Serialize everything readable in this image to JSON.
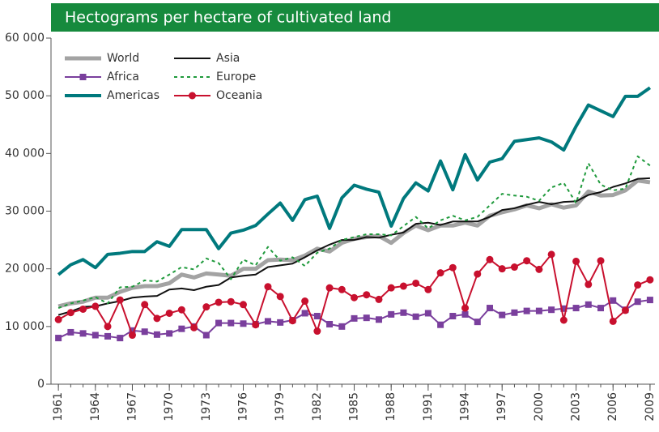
{
  "chart_data": {
    "type": "line",
    "title": "Hectograms per hectare of cultivated land",
    "x": [
      1961,
      1962,
      1963,
      1964,
      1965,
      1966,
      1967,
      1968,
      1969,
      1970,
      1971,
      1972,
      1973,
      1974,
      1975,
      1976,
      1977,
      1978,
      1979,
      1980,
      1981,
      1982,
      1983,
      1984,
      1985,
      1986,
      1987,
      1988,
      1989,
      1990,
      1991,
      1992,
      1993,
      1994,
      1995,
      1996,
      1997,
      1998,
      1999,
      2000,
      2001,
      2002,
      2003,
      2004,
      2005,
      2006,
      2007,
      2008,
      2009
    ],
    "xlim": [
      1960.4,
      2009.4
    ],
    "xticks": [
      1961,
      1964,
      1967,
      1970,
      1973,
      1976,
      1979,
      1982,
      1985,
      1988,
      1991,
      1994,
      1997,
      2000,
      2003,
      2006,
      2009
    ],
    "ylim": [
      0,
      60000
    ],
    "yticks": [
      0,
      {
        "value": 10000,
        "label": "10 000"
      },
      {
        "value": 20000,
        "label": "20 000"
      },
      {
        "value": 30000,
        "label": "30 000"
      },
      {
        "value": 40000,
        "label": "40 000"
      },
      {
        "value": 50000,
        "label": "50 000"
      },
      {
        "value": 60000,
        "label": "60 000"
      }
    ],
    "grid": false,
    "legend": "upper left",
    "series": [
      {
        "name": "World",
        "color": "#a3a3a3",
        "width": 5,
        "values": [
          13500,
          14000,
          14300,
          15000,
          15000,
          16000,
          16700,
          17000,
          17000,
          17500,
          19000,
          18500,
          19200,
          19000,
          18800,
          20000,
          20000,
          21500,
          21600,
          21500,
          22300,
          23500,
          23000,
          24500,
          25200,
          25500,
          25700,
          24500,
          26200,
          27500,
          26700,
          27500,
          27500,
          28000,
          27500,
          29200,
          29800,
          30300,
          31000,
          30500,
          31200,
          30600,
          31000,
          33400,
          32700,
          32800,
          33600,
          35300,
          35000
        ]
      },
      {
        "name": "Africa",
        "color": "#7a3f9d",
        "width": 2,
        "marker": "square",
        "values": [
          8000,
          9000,
          8800,
          8500,
          8300,
          8000,
          9300,
          9100,
          8600,
          8800,
          9600,
          10000,
          8500,
          10600,
          10600,
          10500,
          10400,
          10900,
          10700,
          11100,
          12300,
          11800,
          10400,
          10000,
          11400,
          11500,
          11200,
          12100,
          12400,
          11700,
          12300,
          10300,
          11800,
          12100,
          10800,
          13200,
          12000,
          12400,
          12700,
          12700,
          12900,
          13100,
          13200,
          13800,
          13200,
          14500,
          12900,
          14300,
          14600
        ]
      },
      {
        "name": "Americas",
        "color": "#00797d",
        "width": 4,
        "values": [
          19000,
          20700,
          21600,
          20200,
          22500,
          22700,
          23000,
          23000,
          24700,
          23900,
          26800,
          26800,
          26800,
          23500,
          26200,
          26700,
          27500,
          29500,
          31400,
          28400,
          32000,
          32600,
          27000,
          32300,
          34500,
          33800,
          33300,
          27400,
          32200,
          34900,
          33500,
          38700,
          33700,
          39800,
          35400,
          38500,
          39100,
          42100,
          42400,
          42700,
          42000,
          40600,
          44700,
          48400,
          47400,
          46400,
          49900,
          49900,
          51400
        ]
      },
      {
        "name": "Asia",
        "color": "#111111",
        "width": 2,
        "values": [
          12000,
          12600,
          13400,
          13500,
          14000,
          14400,
          15000,
          15200,
          15300,
          16400,
          16600,
          16300,
          16900,
          17200,
          18500,
          18800,
          19000,
          20300,
          20600,
          20900,
          22000,
          23200,
          24200,
          25000,
          25000,
          25500,
          25400,
          25900,
          26300,
          27800,
          28000,
          27600,
          28200,
          28200,
          28200,
          29000,
          30200,
          30500,
          31100,
          31600,
          31200,
          31600,
          31700,
          32800,
          33300,
          34200,
          34800,
          35600,
          35700
        ]
      },
      {
        "name": "Europe",
        "color": "#1f9a3c",
        "width": 2,
        "style": "dashed",
        "values": [
          13200,
          14000,
          14500,
          15100,
          14000,
          16800,
          16900,
          18000,
          17800,
          19000,
          20300,
          19900,
          21800,
          21000,
          18200,
          21600,
          20600,
          23800,
          21400,
          22000,
          20500,
          22800,
          23500,
          25000,
          25500,
          26000,
          26000,
          25800,
          27400,
          29000,
          27000,
          28400,
          29200,
          28400,
          29000,
          31000,
          33000,
          32700,
          32500,
          31800,
          34100,
          34900,
          31400,
          38300,
          34600,
          33600,
          33900,
          39500,
          37900
        ]
      },
      {
        "name": "Oceania",
        "color": "#c8102e",
        "width": 2,
        "marker": "circle",
        "values": [
          11200,
          12400,
          13000,
          13500,
          10000,
          14600,
          8500,
          13800,
          11400,
          12300,
          12900,
          9800,
          13400,
          14200,
          14300,
          13800,
          10300,
          16900,
          15200,
          11000,
          14400,
          9200,
          16700,
          16400,
          15000,
          15500,
          14700,
          16700,
          17000,
          17500,
          16400,
          19300,
          20200,
          13200,
          19100,
          21600,
          20000,
          20300,
          21400,
          19900,
          22500,
          11100,
          21300,
          17300,
          21400,
          10900,
          12800,
          17200,
          18100
        ]
      }
    ]
  }
}
